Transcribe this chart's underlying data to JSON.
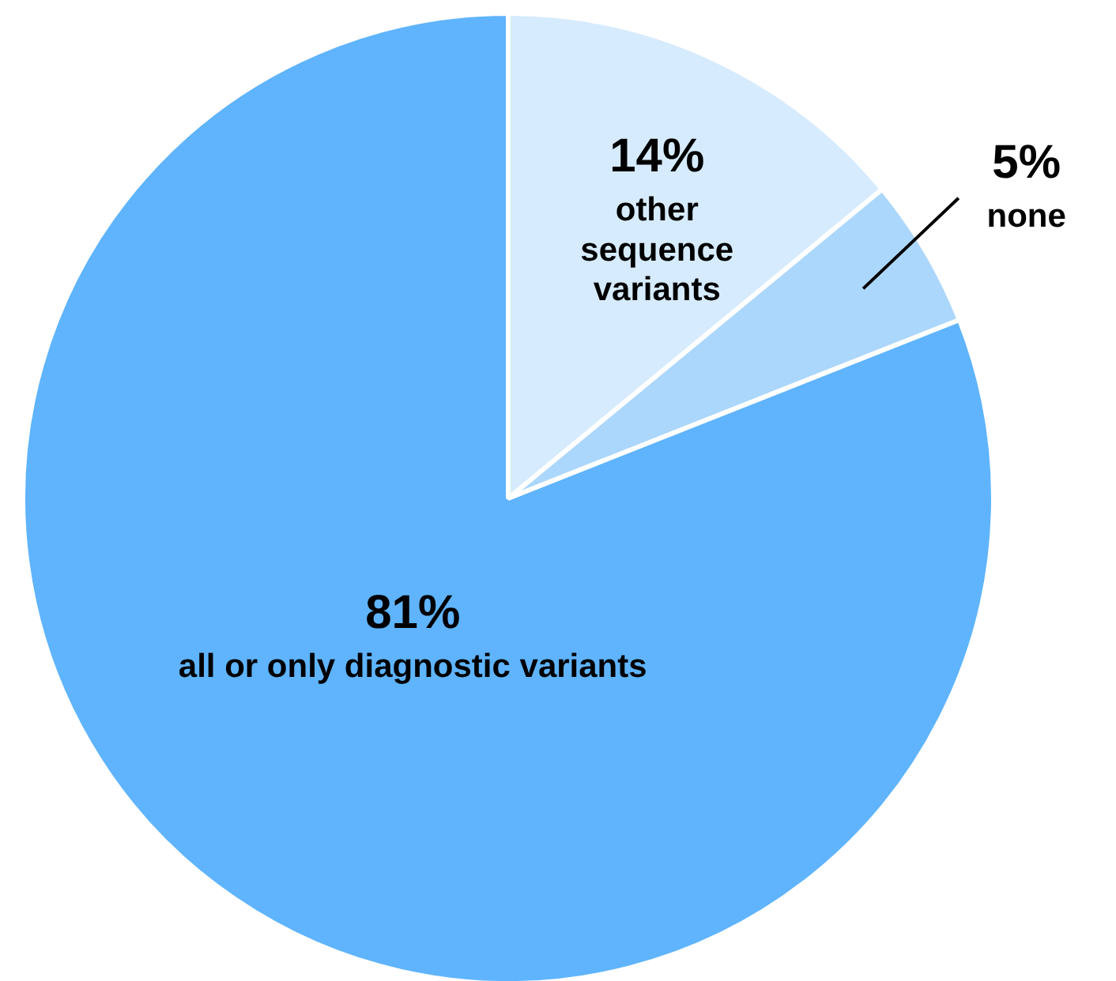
{
  "chart_data": {
    "type": "pie",
    "categories": [
      "other sequence variants",
      "none",
      "all or only diagnostic variants"
    ],
    "values": [
      14,
      5,
      81
    ],
    "colors": [
      "#d6ebfd",
      "#acd7fc",
      "#5fb4fd"
    ],
    "value_labels": [
      "14%",
      "5%",
      "81%"
    ]
  }
}
